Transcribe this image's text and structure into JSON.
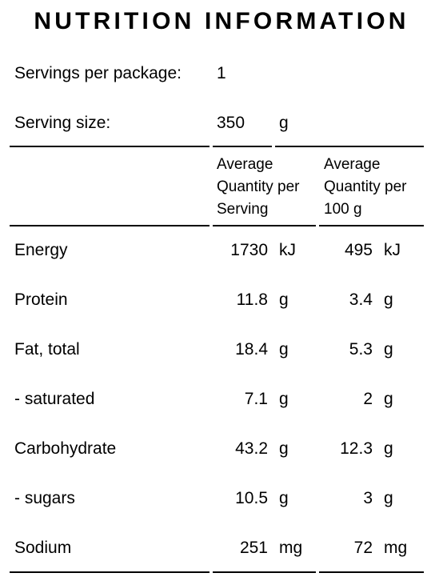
{
  "title": "NUTRITION INFORMATION",
  "servings": {
    "label": "Servings per package:",
    "value": 1
  },
  "serving_size": {
    "label": "Serving size:",
    "value": 350,
    "unit": "g"
  },
  "columns": [
    "Average Quantity per Serving",
    "Average Quantity per 100 g"
  ],
  "rows": [
    {
      "name": "Energy",
      "per_serving": 1730,
      "per_serving_unit": "kJ",
      "per_100g": 495,
      "per_100g_unit": "kJ"
    },
    {
      "name": "Protein",
      "per_serving": 11.8,
      "per_serving_unit": "g",
      "per_100g": 3.4,
      "per_100g_unit": "g"
    },
    {
      "name": "Fat, total",
      "per_serving": 18.4,
      "per_serving_unit": "g",
      "per_100g": 5.3,
      "per_100g_unit": "g"
    },
    {
      "name": "- saturated",
      "per_serving": 7.1,
      "per_serving_unit": "g",
      "per_100g": 2,
      "per_100g_unit": "g"
    },
    {
      "name": "Carbohydrate",
      "per_serving": 43.2,
      "per_serving_unit": "g",
      "per_100g": 12.3,
      "per_100g_unit": "g"
    },
    {
      "name": "- sugars",
      "per_serving": 10.5,
      "per_serving_unit": "g",
      "per_100g": 3,
      "per_100g_unit": "g"
    },
    {
      "name": "Sodium",
      "per_serving": 251,
      "per_serving_unit": "mg",
      "per_100g": 72,
      "per_100g_unit": "mg"
    }
  ]
}
